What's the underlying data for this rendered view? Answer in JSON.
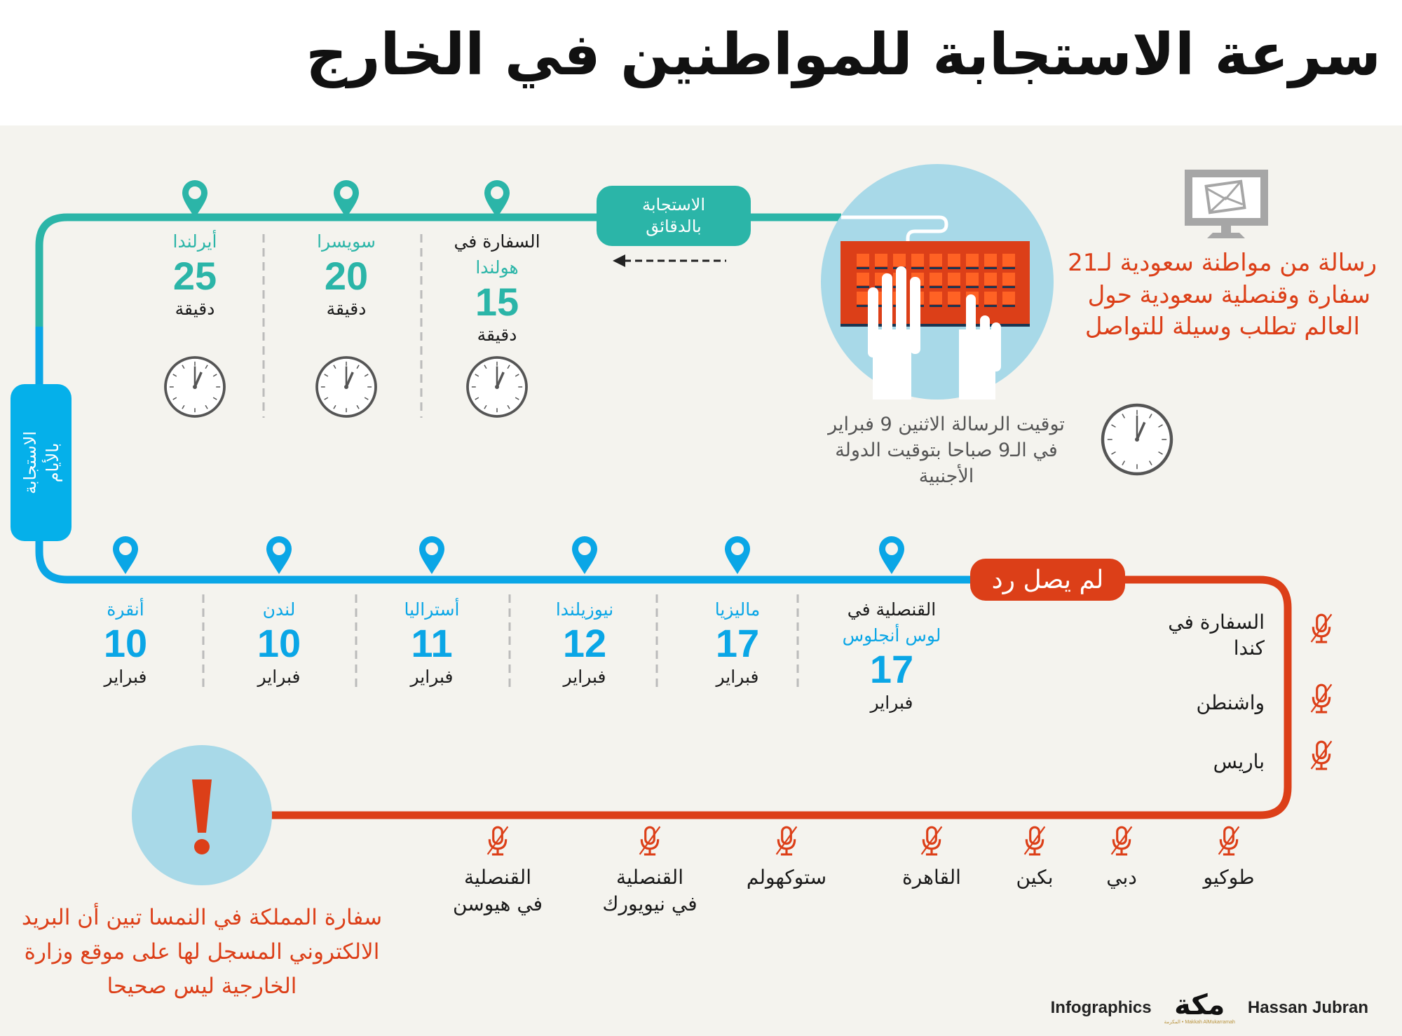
{
  "title": "سرعة الاستجابة للمواطنين في الخارج",
  "colors": {
    "teal": "#2bb5a8",
    "blue": "#0aa6e6",
    "red": "#dc3f18",
    "circle": "#a8d9e8",
    "bg": "#f4f3ee"
  },
  "intro": {
    "lines": [
      "رسالة من مواطنة سعودية لـ21",
      "سفارة وقنصلية سعودية حول",
      "العالم تطلب وسيلة للتواصل"
    ],
    "icon": "monitor-mail-icon"
  },
  "message_time": {
    "lines": [
      "توقيت الرسالة الاثنين 9 فبراير",
      "في الـ9 صباحا بتوقيت الدولة",
      "الأجنبية"
    ]
  },
  "minutes_badge": {
    "line1": "الاستجابة",
    "line2": "بالدقائق"
  },
  "days_badge": {
    "line1": "الاستجابة",
    "line2": "بالأيام"
  },
  "noreply_badge": "لم يصل رد",
  "minutes_items": [
    {
      "prefix": "السفارة في",
      "name": "هولندا",
      "value": "15",
      "unit": "دقيقة"
    },
    {
      "prefix": "",
      "name": "سويسرا",
      "value": "20",
      "unit": "دقيقة"
    },
    {
      "prefix": "",
      "name": "أيرلندا",
      "value": "25",
      "unit": "دقيقة"
    }
  ],
  "days_items": [
    {
      "prefix": "القنصلية في",
      "name": "لوس أنجلوس",
      "value": "17",
      "unit": "فبراير"
    },
    {
      "prefix": "",
      "name": "ماليزيا",
      "value": "17",
      "unit": "فبراير"
    },
    {
      "prefix": "",
      "name": "نيوزيلندا",
      "value": "12",
      "unit": "فبراير"
    },
    {
      "prefix": "",
      "name": "أستراليا",
      "value": "11",
      "unit": "فبراير"
    },
    {
      "prefix": "",
      "name": "لندن",
      "value": "10",
      "unit": "فبراير"
    },
    {
      "prefix": "",
      "name": "أنقرة",
      "value": "10",
      "unit": "فبراير"
    }
  ],
  "noreply_right": [
    {
      "line1": "السفارة في",
      "line2": "كندا"
    },
    {
      "line1": "واشنطن",
      "line2": ""
    },
    {
      "line1": "باريس",
      "line2": ""
    }
  ],
  "noreply_bottom": [
    {
      "line1": "طوكيو",
      "line2": ""
    },
    {
      "line1": "دبي",
      "line2": ""
    },
    {
      "line1": "بكين",
      "line2": ""
    },
    {
      "line1": "القاهرة",
      "line2": ""
    },
    {
      "line1": "ستوكهولم",
      "line2": ""
    },
    {
      "line1": "القنصلية",
      "line2": "في نيويورك"
    },
    {
      "line1": "القنصلية",
      "line2": "في هيوسن"
    }
  ],
  "austria_note": {
    "lines": [
      "سفارة المملكة في النمسا تبين أن البريد",
      "الالكتروني المسجل لها على موقع وزارة",
      "الخارجية ليس صحيحا"
    ]
  },
  "footer": {
    "left": "Infographics",
    "logo": "مكة",
    "logo_sub": "Makkah AlMukarramah • المكرمة",
    "right": "Hassan Jubran"
  }
}
